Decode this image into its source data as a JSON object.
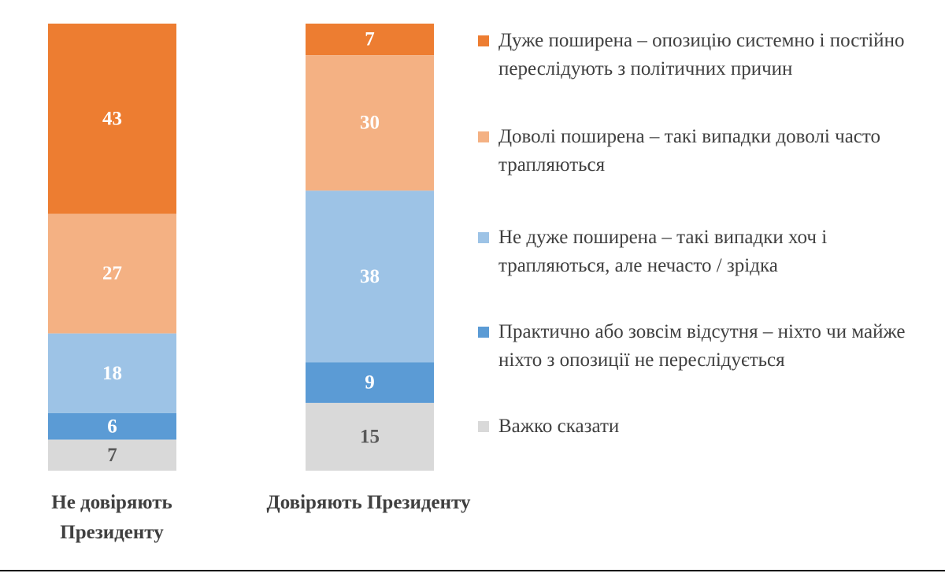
{
  "chart_data": {
    "type": "bar",
    "stacked": true,
    "categories": [
      "Не довіряють Президенту",
      "Довіряють Президенту"
    ],
    "series": [
      {
        "name": "Дуже поширена – опозицію системно і постійно переслідують з політичних причин",
        "values": [
          43,
          7
        ],
        "color": "#ED7D31",
        "label_color": "#FFFFFF"
      },
      {
        "name": "Доволі поширена – такі випадки доволі часто трапляються",
        "values": [
          27,
          30
        ],
        "color": "#F4B183",
        "label_color": "#FFFFFF"
      },
      {
        "name": "Не дуже поширена – такі випадки хоч і трапляються, але нечасто / зрідка",
        "values": [
          18,
          38
        ],
        "color": "#9DC3E6",
        "label_color": "#FFFFFF"
      },
      {
        "name": "Практично або зовсім відсутня – ніхто чи майже ніхто з опозиції не переслідується",
        "values": [
          6,
          9
        ],
        "color": "#5B9BD5",
        "label_color": "#FFFFFF"
      },
      {
        "name": "Важко сказати",
        "values": [
          7,
          15
        ],
        "color": "#D9D9D9",
        "label_color": "#595959"
      }
    ],
    "legend_position": "right",
    "category_label_lines": [
      [
        "Не довіряють",
        "Президенту"
      ],
      [
        "Довіряють Президенту"
      ]
    ]
  }
}
